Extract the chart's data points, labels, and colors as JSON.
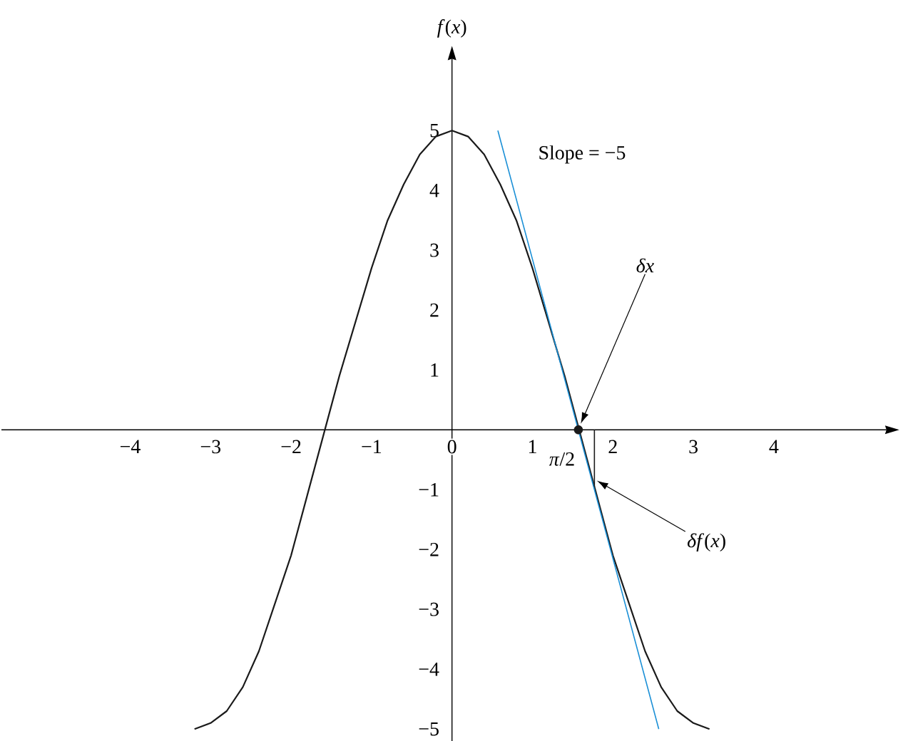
{
  "chart_data": {
    "type": "line",
    "ylabel": "*f*(*x*)",
    "xlim": [
      -5.6,
      5.4
    ],
    "ylim": [
      -5.2,
      6.2
    ],
    "xticks": [
      {
        "value": -4,
        "label": "−4"
      },
      {
        "value": -3,
        "label": "−3"
      },
      {
        "value": -2,
        "label": "−2"
      },
      {
        "value": -1,
        "label": "−1"
      },
      0,
      1,
      2,
      3,
      4
    ],
    "yticks": [
      {
        "value": -5,
        "label": "−5"
      },
      {
        "value": -4,
        "label": "−4"
      },
      {
        "value": -3,
        "label": "−3"
      },
      {
        "value": -2,
        "label": "−2"
      },
      {
        "value": -1,
        "label": "−1"
      },
      1,
      2,
      3,
      4,
      5
    ],
    "grid": false,
    "series": [
      {
        "color": "#1a1a1a",
        "x": [
          -3.2,
          -3.0,
          -2.8,
          -2.6,
          -2.4,
          -2.2,
          -2.0,
          -1.8,
          -1.6,
          -1.4,
          -1.2,
          -1.0,
          -0.8,
          -0.6,
          -0.4,
          -0.2,
          0,
          0.2,
          0.4,
          0.6,
          0.8,
          1.0,
          1.2,
          1.4,
          1.6,
          1.8,
          2.0,
          2.2,
          2.4,
          2.6,
          2.8,
          3.0,
          3.2
        ],
        "values": [
          -5.0,
          -4.9,
          -4.7,
          -4.3,
          -3.7,
          -2.9,
          -2.1,
          -1.1,
          -0.1,
          0.9,
          1.8,
          2.7,
          3.5,
          4.1,
          4.6,
          4.9,
          5.0,
          4.9,
          4.6,
          4.1,
          3.5,
          2.7,
          1.8,
          0.9,
          -0.1,
          -1.1,
          -2.1,
          -2.9,
          -3.7,
          -4.3,
          -4.7,
          -4.9,
          -5.0
        ]
      },
      {
        "type": "line",
        "color": "#1a8fd6",
        "x": [
          0.57,
          2.57
        ],
        "values": [
          5.0,
          -5.0
        ]
      },
      {
        "type": "line",
        "color": "#1a1a1a",
        "x": [
          1.77,
          1.77
        ],
        "values": [
          0,
          -0.95
        ]
      },
      {
        "type": "scatter",
        "color": "#1a1a1a",
        "x": [
          1.571
        ],
        "values": [
          0
        ]
      }
    ],
    "annotations": [
      "Slope = −5",
      {
        "text": "*δx*",
        "x": 1.6,
        "y": 0.1
      },
      {
        "text": "*δf*(*x*)",
        "x": 1.8,
        "y": -0.85
      },
      "*π*/2"
    ]
  }
}
